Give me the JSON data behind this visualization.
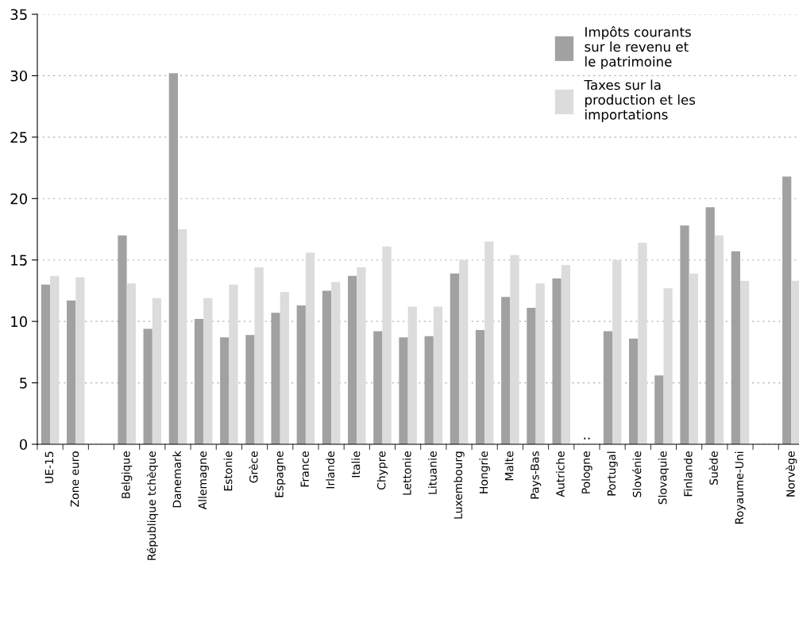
{
  "chart_data": {
    "type": "bar",
    "categories": [
      "UE-15",
      "Zone euro",
      null,
      "Belgique",
      "République tchèque",
      "Danemark",
      "Allemagne",
      "Estonie",
      "Grèce",
      "Espagne",
      "France",
      "Irlande",
      "Italie",
      "Chypre",
      "Lettonie",
      "Lituanie",
      "Luxembourg",
      "Hongrie",
      "Malte",
      "Pays-Bas",
      "Autriche",
      "Pologne",
      "Portugal",
      "Slovénie",
      "Slovaquie",
      "Finlande",
      "Suède",
      "Royaume-Uni",
      null,
      "Norvège"
    ],
    "series": [
      {
        "name": "Impôts courants sur le revenu et le patrimoine",
        "color": "#a0a2a1",
        "values": [
          13.0,
          11.7,
          null,
          17.0,
          9.4,
          30.2,
          10.2,
          8.7,
          8.9,
          10.7,
          11.3,
          12.5,
          13.7,
          9.2,
          8.7,
          8.8,
          13.9,
          9.3,
          12.0,
          11.1,
          13.5,
          null,
          9.2,
          8.6,
          5.6,
          17.8,
          19.3,
          15.7,
          null,
          21.8
        ]
      },
      {
        "name": "Taxes sur la production et les importations",
        "color": "#dcdcdc",
        "values": [
          13.7,
          13.6,
          null,
          13.1,
          11.9,
          17.5,
          11.9,
          13.0,
          14.4,
          12.4,
          15.6,
          13.2,
          14.4,
          16.1,
          11.2,
          11.2,
          15.0,
          16.5,
          15.4,
          13.1,
          14.6,
          null,
          15.0,
          16.4,
          12.7,
          13.9,
          17.0,
          13.3,
          null,
          13.3
        ]
      }
    ],
    "ylim": [
      0,
      35
    ],
    "yticks": [
      0,
      5,
      10,
      15,
      20,
      25,
      30,
      35
    ],
    "grid": "y",
    "legend": "top right",
    "annotations": [
      ".."
    ]
  }
}
